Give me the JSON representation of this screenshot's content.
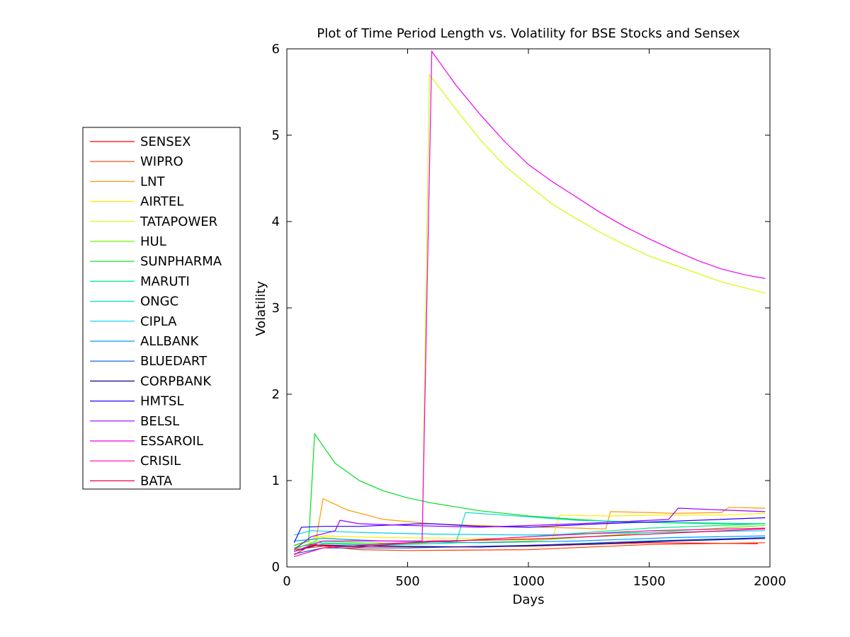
{
  "chart_data": {
    "type": "line",
    "title": "Plot of Time Period Length vs. Volatility for BSE Stocks and Sensex",
    "xlabel": "Days",
    "ylabel": "Volatility",
    "xlim": [
      0,
      2000
    ],
    "ylim": [
      0,
      6
    ],
    "xticks": [
      0,
      500,
      1000,
      1500,
      2000
    ],
    "yticks": [
      0,
      1,
      2,
      3,
      4,
      5,
      6
    ],
    "grid": false,
    "legend_position": "left-outside",
    "series": [
      {
        "name": "SENSEX",
        "color": "#ff0000",
        "points": [
          [
            30,
            0.22
          ],
          [
            100,
            0.26
          ],
          [
            300,
            0.24
          ],
          [
            600,
            0.23
          ],
          [
            1000,
            0.24
          ],
          [
            1500,
            0.28
          ],
          [
            1950,
            0.27
          ]
        ]
      },
      {
        "name": "WIPRO",
        "color": "#ff4000",
        "points": [
          [
            30,
            0.2
          ],
          [
            150,
            0.24
          ],
          [
            300,
            0.2
          ],
          [
            500,
            0.19
          ],
          [
            1000,
            0.2
          ],
          [
            1500,
            0.26
          ],
          [
            1980,
            0.28
          ]
        ]
      },
      {
        "name": "LNT",
        "color": "#ff9900",
        "points": [
          [
            30,
            0.2
          ],
          [
            120,
            0.3
          ],
          [
            150,
            0.79
          ],
          [
            250,
            0.66
          ],
          [
            400,
            0.55
          ],
          [
            600,
            0.5
          ],
          [
            900,
            0.47
          ],
          [
            1200,
            0.45
          ],
          [
            1320,
            0.44
          ],
          [
            1340,
            0.64
          ],
          [
            1500,
            0.63
          ],
          [
            1600,
            0.62
          ],
          [
            1800,
            0.63
          ],
          [
            1830,
            0.69
          ],
          [
            1980,
            0.68
          ]
        ]
      },
      {
        "name": "AIRTEL",
        "color": "#ffee00",
        "points": [
          [
            30,
            0.25
          ],
          [
            150,
            0.36
          ],
          [
            400,
            0.34
          ],
          [
            800,
            0.33
          ],
          [
            1100,
            0.33
          ],
          [
            1130,
            0.6
          ],
          [
            1300,
            0.59
          ],
          [
            1600,
            0.6
          ],
          [
            1800,
            0.6
          ],
          [
            1980,
            0.62
          ]
        ]
      },
      {
        "name": "TATAPOWER",
        "color": "#ccff00",
        "points": [
          [
            30,
            0.22
          ],
          [
            120,
            0.35
          ],
          [
            300,
            0.3
          ],
          [
            560,
            0.3
          ],
          [
            590,
            5.7
          ],
          [
            700,
            5.3
          ],
          [
            800,
            4.95
          ],
          [
            900,
            4.65
          ],
          [
            1000,
            4.42
          ],
          [
            1100,
            4.2
          ],
          [
            1200,
            4.03
          ],
          [
            1300,
            3.87
          ],
          [
            1400,
            3.73
          ],
          [
            1500,
            3.6
          ],
          [
            1600,
            3.5
          ],
          [
            1700,
            3.4
          ],
          [
            1800,
            3.3
          ],
          [
            1900,
            3.23
          ],
          [
            1980,
            3.17
          ]
        ]
      },
      {
        "name": "HUL",
        "color": "#66ff00",
        "points": [
          [
            30,
            0.2
          ],
          [
            120,
            0.3
          ],
          [
            300,
            0.28
          ],
          [
            600,
            0.27
          ],
          [
            1000,
            0.3
          ],
          [
            1500,
            0.4
          ],
          [
            1980,
            0.48
          ]
        ]
      },
      {
        "name": "SUNPHARMA",
        "color": "#00dd22",
        "points": [
          [
            30,
            0.25
          ],
          [
            90,
            0.3
          ],
          [
            115,
            1.54
          ],
          [
            200,
            1.2
          ],
          [
            300,
            1.0
          ],
          [
            400,
            0.88
          ],
          [
            500,
            0.8
          ],
          [
            600,
            0.74
          ],
          [
            800,
            0.65
          ],
          [
            1000,
            0.59
          ],
          [
            1200,
            0.55
          ],
          [
            1400,
            0.52
          ],
          [
            1600,
            0.51
          ],
          [
            1800,
            0.5
          ],
          [
            1980,
            0.5
          ]
        ]
      },
      {
        "name": "MARUTI",
        "color": "#00ee88",
        "points": [
          [
            30,
            0.22
          ],
          [
            120,
            0.28
          ],
          [
            400,
            0.26
          ],
          [
            700,
            0.3
          ],
          [
            1000,
            0.35
          ],
          [
            1500,
            0.45
          ],
          [
            1980,
            0.5
          ]
        ]
      },
      {
        "name": "ONGC",
        "color": "#00ddcc",
        "points": [
          [
            30,
            0.18
          ],
          [
            150,
            0.27
          ],
          [
            400,
            0.25
          ],
          [
            700,
            0.28
          ],
          [
            740,
            0.63
          ],
          [
            900,
            0.6
          ],
          [
            1000,
            0.58
          ],
          [
            1200,
            0.54
          ],
          [
            1500,
            0.52
          ],
          [
            1980,
            0.5
          ]
        ]
      },
      {
        "name": "CIPLA",
        "color": "#00ccff",
        "points": [
          [
            30,
            0.37
          ],
          [
            100,
            0.42
          ],
          [
            300,
            0.4
          ],
          [
            600,
            0.38
          ],
          [
            1000,
            0.37
          ],
          [
            1500,
            0.4
          ],
          [
            1980,
            0.42
          ]
        ]
      },
      {
        "name": "ALLBANK",
        "color": "#0099ff",
        "points": [
          [
            30,
            0.3
          ],
          [
            150,
            0.33
          ],
          [
            400,
            0.3
          ],
          [
            800,
            0.28
          ],
          [
            1200,
            0.3
          ],
          [
            1600,
            0.34
          ],
          [
            1980,
            0.36
          ]
        ]
      },
      {
        "name": "BLUEDART",
        "color": "#0055dd",
        "points": [
          [
            30,
            0.15
          ],
          [
            150,
            0.22
          ],
          [
            500,
            0.22
          ],
          [
            1000,
            0.25
          ],
          [
            1500,
            0.3
          ],
          [
            1980,
            0.34
          ]
        ]
      },
      {
        "name": "CORPBANK",
        "color": "#220088",
        "points": [
          [
            30,
            0.18
          ],
          [
            120,
            0.25
          ],
          [
            400,
            0.24
          ],
          [
            800,
            0.23
          ],
          [
            1200,
            0.26
          ],
          [
            1600,
            0.3
          ],
          [
            1980,
            0.33
          ]
        ]
      },
      {
        "name": "HMTSL",
        "color": "#2200ff",
        "points": [
          [
            30,
            0.28
          ],
          [
            60,
            0.46
          ],
          [
            150,
            0.47
          ],
          [
            300,
            0.47
          ],
          [
            550,
            0.5
          ],
          [
            600,
            0.5
          ],
          [
            800,
            0.47
          ],
          [
            1000,
            0.46
          ],
          [
            1300,
            0.5
          ],
          [
            1600,
            0.53
          ],
          [
            1980,
            0.57
          ]
        ]
      },
      {
        "name": "BELSL",
        "color": "#9900ff",
        "points": [
          [
            30,
            0.2
          ],
          [
            100,
            0.35
          ],
          [
            200,
            0.42
          ],
          [
            220,
            0.54
          ],
          [
            300,
            0.5
          ],
          [
            500,
            0.48
          ],
          [
            800,
            0.46
          ],
          [
            1200,
            0.5
          ],
          [
            1580,
            0.55
          ],
          [
            1620,
            0.68
          ],
          [
            1800,
            0.66
          ],
          [
            1980,
            0.64
          ]
        ]
      },
      {
        "name": "ESSAROIL",
        "color": "#ee00ee",
        "points": [
          [
            30,
            0.18
          ],
          [
            150,
            0.3
          ],
          [
            560,
            0.3
          ],
          [
            600,
            5.97
          ],
          [
            700,
            5.58
          ],
          [
            800,
            5.24
          ],
          [
            900,
            4.93
          ],
          [
            1000,
            4.66
          ],
          [
            1100,
            4.46
          ],
          [
            1200,
            4.28
          ],
          [
            1300,
            4.1
          ],
          [
            1400,
            3.94
          ],
          [
            1500,
            3.8
          ],
          [
            1600,
            3.67
          ],
          [
            1700,
            3.55
          ],
          [
            1800,
            3.45
          ],
          [
            1900,
            3.38
          ],
          [
            1980,
            3.34
          ]
        ]
      },
      {
        "name": "CRISIL",
        "color": "#ff00aa",
        "points": [
          [
            30,
            0.12
          ],
          [
            150,
            0.22
          ],
          [
            400,
            0.27
          ],
          [
            700,
            0.3
          ],
          [
            1000,
            0.35
          ],
          [
            1500,
            0.42
          ],
          [
            1980,
            0.45
          ]
        ]
      },
      {
        "name": "BATA",
        "color": "#ee0044",
        "points": [
          [
            30,
            0.14
          ],
          [
            100,
            0.25
          ],
          [
            300,
            0.23
          ],
          [
            600,
            0.3
          ],
          [
            1000,
            0.32
          ],
          [
            1500,
            0.38
          ],
          [
            1980,
            0.44
          ]
        ]
      }
    ]
  }
}
